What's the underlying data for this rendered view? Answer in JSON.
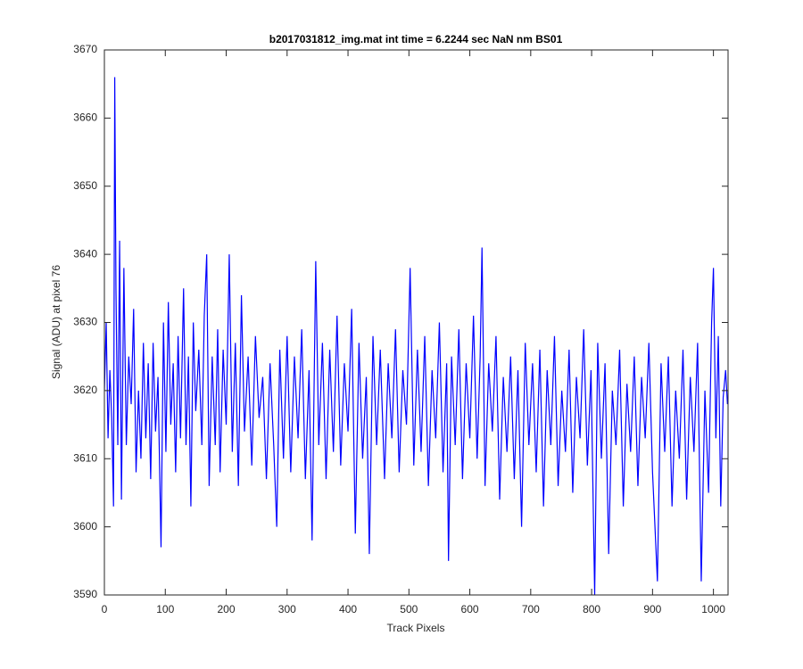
{
  "chart_data": {
    "type": "line",
    "title": "b2017031812_img.mat int time = 6.2244 sec  NaN nm BS01",
    "xlabel": "Track Pixels",
    "ylabel": "Signal (ADU) at pixel 76",
    "color": "#0000ff",
    "x": [
      0,
      3,
      6,
      9,
      12,
      15,
      17,
      19,
      22,
      25,
      28,
      32,
      36,
      40,
      44,
      48,
      52,
      56,
      60,
      64,
      68,
      72,
      76,
      80,
      84,
      88,
      93,
      97,
      101,
      105,
      109,
      113,
      117,
      121,
      125,
      130,
      134,
      138,
      142,
      146,
      150,
      155,
      160,
      164,
      168,
      172,
      177,
      182,
      186,
      190,
      195,
      200,
      205,
      210,
      215,
      220,
      225,
      230,
      236,
      242,
      248,
      254,
      260,
      266,
      272,
      278,
      283,
      288,
      294,
      300,
      306,
      312,
      318,
      324,
      330,
      336,
      341,
      347,
      352,
      358,
      364,
      370,
      376,
      382,
      388,
      394,
      400,
      406,
      412,
      418,
      424,
      430,
      435,
      441,
      447,
      453,
      460,
      466,
      472,
      478,
      484,
      490,
      496,
      502,
      508,
      514,
      520,
      526,
      532,
      538,
      544,
      550,
      556,
      562,
      565,
      570,
      576,
      582,
      588,
      594,
      600,
      606,
      612,
      617,
      620,
      625,
      631,
      637,
      643,
      649,
      655,
      661,
      667,
      673,
      679,
      685,
      691,
      697,
      703,
      709,
      715,
      721,
      727,
      733,
      739,
      745,
      751,
      757,
      763,
      769,
      775,
      781,
      787,
      793,
      799,
      805,
      810,
      816,
      822,
      828,
      834,
      840,
      846,
      852,
      858,
      864,
      870,
      876,
      882,
      888,
      894,
      900,
      908,
      914,
      920,
      926,
      932,
      938,
      944,
      950,
      956,
      962,
      968,
      974,
      980,
      986,
      992,
      997,
      1000,
      1004,
      1008,
      1012,
      1016,
      1020,
      1023
    ],
    "values": [
      3620,
      3630,
      3613,
      3623,
      3616,
      3603,
      3666,
      3635,
      3612,
      3642,
      3604,
      3638,
      3612,
      3625,
      3618,
      3632,
      3608,
      3620,
      3610,
      3627,
      3613,
      3624,
      3607,
      3627,
      3614,
      3622,
      3597,
      3630,
      3611,
      3633,
      3615,
      3624,
      3608,
      3628,
      3613,
      3635,
      3612,
      3625,
      3603,
      3630,
      3617,
      3626,
      3612,
      3631,
      3640,
      3606,
      3625,
      3612,
      3629,
      3608,
      3626,
      3615,
      3640,
      3611,
      3627,
      3606,
      3634,
      3614,
      3625,
      3609,
      3628,
      3616,
      3622,
      3607,
      3624,
      3612,
      3600,
      3626,
      3610,
      3628,
      3608,
      3625,
      3613,
      3629,
      3607,
      3623,
      3598,
      3639,
      3612,
      3627,
      3607,
      3626,
      3611,
      3631,
      3609,
      3624,
      3614,
      3632,
      3599,
      3627,
      3610,
      3622,
      3596,
      3628,
      3612,
      3626,
      3607,
      3624,
      3613,
      3629,
      3608,
      3623,
      3615,
      3638,
      3609,
      3626,
      3611,
      3628,
      3606,
      3623,
      3613,
      3630,
      3608,
      3624,
      3595,
      3625,
      3612,
      3629,
      3607,
      3624,
      3613,
      3631,
      3610,
      3625,
      3641,
      3606,
      3624,
      3614,
      3628,
      3604,
      3622,
      3611,
      3625,
      3607,
      3623,
      3600,
      3627,
      3612,
      3624,
      3608,
      3626,
      3603,
      3623,
      3612,
      3628,
      3606,
      3620,
      3611,
      3626,
      3605,
      3622,
      3613,
      3629,
      3609,
      3623,
      3590,
      3627,
      3610,
      3624,
      3596,
      3620,
      3612,
      3626,
      3603,
      3621,
      3611,
      3625,
      3606,
      3622,
      3613,
      3627,
      3608,
      3592,
      3624,
      3611,
      3625,
      3603,
      3620,
      3610,
      3626,
      3604,
      3622,
      3611,
      3627,
      3592,
      3620,
      3605,
      3630,
      3638,
      3613,
      3628,
      3603,
      3619,
      3623,
      3618
    ],
    "xlim": [
      0,
      1024
    ],
    "xticks": [
      0,
      100,
      200,
      300,
      400,
      500,
      600,
      700,
      800,
      900,
      1000
    ],
    "ylim": [
      3590,
      3670
    ],
    "yticks": [
      3590,
      3600,
      3610,
      3620,
      3630,
      3640,
      3650,
      3660,
      3670
    ]
  }
}
